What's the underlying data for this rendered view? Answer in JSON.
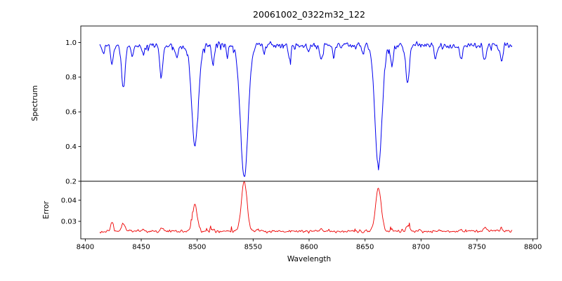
{
  "chart_data": [
    {
      "type": "line",
      "title": "20061002_0322m32_122",
      "ylabel": "Spectrum",
      "line_color": "#0000ee",
      "xlim": [
        8396,
        8804
      ],
      "ylim": [
        0.2,
        1.095
      ],
      "yticks": [
        "0.2",
        "0.4",
        "0.6",
        "0.8",
        "1.0"
      ],
      "x_data_range": [
        8413,
        8782
      ],
      "continuum": 0.982,
      "noise_std": 0.009,
      "absorption_lines": [
        {
          "wavelength": 8416,
          "depth": 0.05,
          "sigma": 1.0
        },
        {
          "wavelength": 8424,
          "depth": 0.11,
          "sigma": 1.2
        },
        {
          "wavelength": 8434,
          "depth": 0.25,
          "sigma": 1.5
        },
        {
          "wavelength": 8442,
          "depth": 0.07,
          "sigma": 1.0
        },
        {
          "wavelength": 8452,
          "depth": 0.05,
          "sigma": 1.0
        },
        {
          "wavelength": 8468,
          "depth": 0.17,
          "sigma": 1.4
        },
        {
          "wavelength": 8482,
          "depth": 0.06,
          "sigma": 1.0
        },
        {
          "wavelength": 8498,
          "depth": 0.56,
          "sigma": 3.0
        },
        {
          "wavelength": 8514,
          "depth": 0.11,
          "sigma": 1.2
        },
        {
          "wavelength": 8527,
          "depth": 0.06,
          "sigma": 1.0
        },
        {
          "wavelength": 8542,
          "depth": 0.75,
          "sigma": 3.4
        },
        {
          "wavelength": 8560,
          "depth": 0.04,
          "sigma": 1.0
        },
        {
          "wavelength": 8583,
          "depth": 0.07,
          "sigma": 1.2
        },
        {
          "wavelength": 8599,
          "depth": 0.05,
          "sigma": 1.0
        },
        {
          "wavelength": 8611,
          "depth": 0.09,
          "sigma": 1.2
        },
        {
          "wavelength": 8622,
          "depth": 0.06,
          "sigma": 1.0
        },
        {
          "wavelength": 8648,
          "depth": 0.05,
          "sigma": 1.0
        },
        {
          "wavelength": 8662,
          "depth": 0.69,
          "sigma": 3.2
        },
        {
          "wavelength": 8674,
          "depth": 0.12,
          "sigma": 1.2
        },
        {
          "wavelength": 8688,
          "depth": 0.22,
          "sigma": 1.5
        },
        {
          "wavelength": 8713,
          "depth": 0.08,
          "sigma": 1.2
        },
        {
          "wavelength": 8736,
          "depth": 0.07,
          "sigma": 1.2
        },
        {
          "wavelength": 8757,
          "depth": 0.1,
          "sigma": 1.2
        },
        {
          "wavelength": 8772,
          "depth": 0.09,
          "sigma": 1.2
        }
      ]
    },
    {
      "type": "line",
      "ylabel": "Error",
      "xlabel": "Wavelength",
      "line_color": "#ee0000",
      "xlim": [
        8396,
        8804
      ],
      "ylim": [
        0.0217,
        0.049
      ],
      "yticks": [
        "0.03",
        "0.04"
      ],
      "xticks": [
        "8400",
        "8450",
        "8500",
        "8550",
        "8600",
        "8650",
        "8700",
        "8750",
        "8800"
      ],
      "x_data_range": [
        8413,
        8782
      ],
      "continuum": 0.0253,
      "noise_std": 0.00032,
      "emission_peaks": [
        {
          "wavelength": 8424,
          "height": 0.0045,
          "sigma": 1.2
        },
        {
          "wavelength": 8434,
          "height": 0.0035,
          "sigma": 1.5
        },
        {
          "wavelength": 8452,
          "height": 0.0008,
          "sigma": 1.0
        },
        {
          "wavelength": 8468,
          "height": 0.0015,
          "sigma": 1.4
        },
        {
          "wavelength": 8498,
          "height": 0.0125,
          "sigma": 2.2
        },
        {
          "wavelength": 8514,
          "height": 0.0012,
          "sigma": 1.2
        },
        {
          "wavelength": 8542,
          "height": 0.0235,
          "sigma": 2.5
        },
        {
          "wavelength": 8611,
          "height": 0.001,
          "sigma": 1.2
        },
        {
          "wavelength": 8662,
          "height": 0.0205,
          "sigma": 2.5
        },
        {
          "wavelength": 8674,
          "height": 0.0015,
          "sigma": 1.2
        },
        {
          "wavelength": 8688,
          "height": 0.0028,
          "sigma": 1.5
        },
        {
          "wavelength": 8736,
          "height": 0.001,
          "sigma": 1.2
        },
        {
          "wavelength": 8757,
          "height": 0.0018,
          "sigma": 1.2
        },
        {
          "wavelength": 8772,
          "height": 0.0015,
          "sigma": 1.2
        }
      ]
    }
  ]
}
